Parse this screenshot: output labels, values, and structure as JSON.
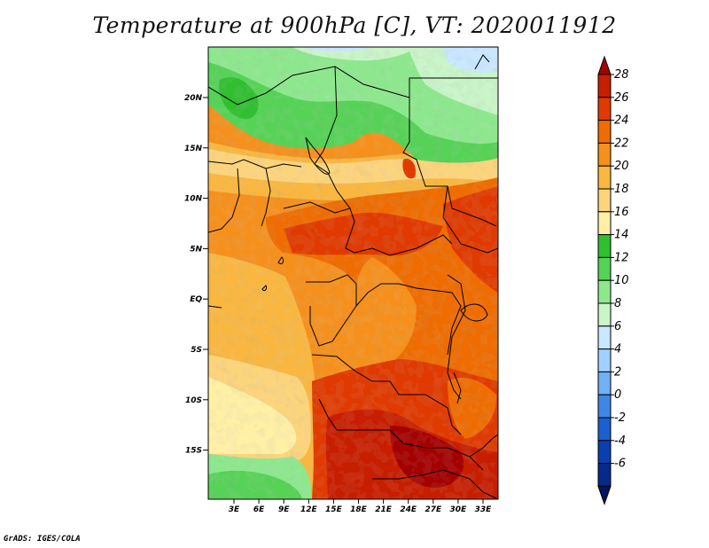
{
  "title": "Temperature at 900hPa [C], VT: 2020011912",
  "credit": "GrADS: IGES/COLA",
  "map": {
    "variable": "Temperature at 900hPa",
    "units": "C",
    "valid_time": "2020011912",
    "lat_labels": [
      "20N",
      "15N",
      "10N",
      "5N",
      "EQ",
      "5S",
      "10S",
      "15S"
    ],
    "lon_labels": [
      "3E",
      "6E",
      "9E",
      "12E",
      "15E",
      "18E",
      "21E",
      "24E",
      "27E",
      "30E",
      "33E"
    ]
  },
  "colorbar": {
    "labels": [
      "28",
      "26",
      "24",
      "22",
      "20",
      "18",
      "16",
      "14",
      "12",
      "10",
      "8",
      "6",
      "4",
      "2",
      "0",
      "-2",
      "-4",
      "-6"
    ],
    "colors": [
      "#a50000",
      "#c81e00",
      "#e03a00",
      "#ee6c00",
      "#f5901c",
      "#f9b740",
      "#fcd47c",
      "#fff0a6",
      "#2fbf2f",
      "#56d256",
      "#8de88d",
      "#c9f5c9",
      "#c9e7ff",
      "#9fd0ff",
      "#6fb1f5",
      "#3f86e6",
      "#1c5fcf",
      "#0a3fb0",
      "#072a8a",
      "#02155e"
    ]
  }
}
